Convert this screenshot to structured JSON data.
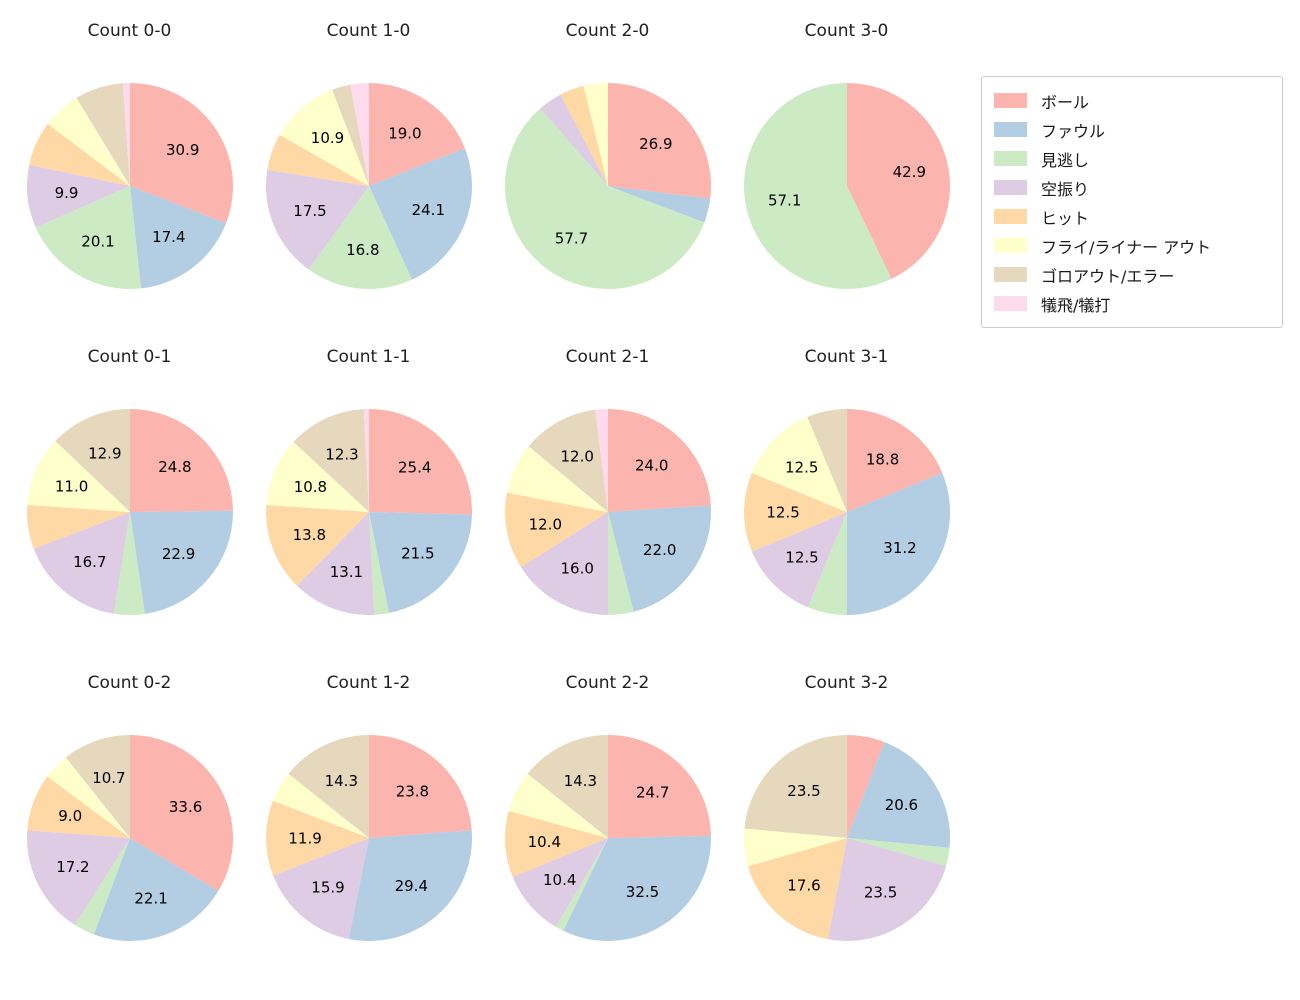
{
  "figure": {
    "background": "#ffffff",
    "text_color": "#1a1a1a"
  },
  "legend": {
    "position": "top-right",
    "border_color": "#cccccc",
    "items": [
      {
        "label": "ボール",
        "color": "#fbb4ae"
      },
      {
        "label": "ファウル",
        "color": "#b3cde3"
      },
      {
        "label": "見逃し",
        "color": "#ccebc5"
      },
      {
        "label": "空振り",
        "color": "#decbe4"
      },
      {
        "label": "ヒット",
        "color": "#fed9a6"
      },
      {
        "label": "フライ/ライナー アウト",
        "color": "#ffffcc"
      },
      {
        "label": "ゴロアウト/エラー",
        "color": "#e5d8bd"
      },
      {
        "label": "犠飛/犠打",
        "color": "#fddaec"
      }
    ]
  },
  "chart_data": [
    {
      "type": "pie",
      "title": "Count 0-0",
      "start_angle_deg": 0,
      "direction": "clockwise",
      "slices": [
        {
          "category": "ボール",
          "value": 30.9,
          "label": "30.9"
        },
        {
          "category": "ファウル",
          "value": 17.4,
          "label": "17.4"
        },
        {
          "category": "見逃し",
          "value": 20.1,
          "label": "20.1"
        },
        {
          "category": "空振り",
          "value": 9.9,
          "label": "9.9"
        },
        {
          "category": "ヒット",
          "value": 7.0,
          "label": ""
        },
        {
          "category": "フライ/ライナー アウト",
          "value": 6.0,
          "label": ""
        },
        {
          "category": "ゴロアウト/エラー",
          "value": 7.6,
          "label": ""
        },
        {
          "category": "犠飛/犠打",
          "value": 1.1,
          "label": ""
        }
      ]
    },
    {
      "type": "pie",
      "title": "Count 1-0",
      "start_angle_deg": 0,
      "direction": "clockwise",
      "slices": [
        {
          "category": "ボール",
          "value": 19.0,
          "label": "19.0"
        },
        {
          "category": "ファウル",
          "value": 24.1,
          "label": "24.1"
        },
        {
          "category": "見逃し",
          "value": 16.8,
          "label": "16.8"
        },
        {
          "category": "空振り",
          "value": 17.5,
          "label": "17.5"
        },
        {
          "category": "ヒット",
          "value": 5.8,
          "label": ""
        },
        {
          "category": "フライ/ライナー アウト",
          "value": 10.9,
          "label": "10.9"
        },
        {
          "category": "ゴロアウト/エラー",
          "value": 2.9,
          "label": ""
        },
        {
          "category": "犠飛/犠打",
          "value": 2.9,
          "label": ""
        }
      ]
    },
    {
      "type": "pie",
      "title": "Count 2-0",
      "start_angle_deg": 0,
      "direction": "clockwise",
      "slices": [
        {
          "category": "ボール",
          "value": 26.9,
          "label": "26.9"
        },
        {
          "category": "ファウル",
          "value": 3.8,
          "label": ""
        },
        {
          "category": "見逃し",
          "value": 57.7,
          "label": "57.7"
        },
        {
          "category": "空振り",
          "value": 3.8,
          "label": ""
        },
        {
          "category": "ヒット",
          "value": 3.8,
          "label": ""
        },
        {
          "category": "フライ/ライナー アウト",
          "value": 3.8,
          "label": ""
        }
      ]
    },
    {
      "type": "pie",
      "title": "Count 3-0",
      "start_angle_deg": 0,
      "direction": "clockwise",
      "slices": [
        {
          "category": "ボール",
          "value": 42.9,
          "label": "42.9"
        },
        {
          "category": "見逃し",
          "value": 57.1,
          "label": "57.1"
        }
      ]
    },
    {
      "type": "pie",
      "title": "Count 0-1",
      "start_angle_deg": 0,
      "direction": "clockwise",
      "slices": [
        {
          "category": "ボール",
          "value": 24.8,
          "label": "24.8"
        },
        {
          "category": "ファウル",
          "value": 22.9,
          "label": "22.9"
        },
        {
          "category": "見逃し",
          "value": 4.8,
          "label": ""
        },
        {
          "category": "空振り",
          "value": 16.7,
          "label": "16.7"
        },
        {
          "category": "ヒット",
          "value": 6.9,
          "label": ""
        },
        {
          "category": "フライ/ライナー アウト",
          "value": 11.0,
          "label": "11.0"
        },
        {
          "category": "ゴロアウト/エラー",
          "value": 12.9,
          "label": "12.9"
        }
      ]
    },
    {
      "type": "pie",
      "title": "Count 1-1",
      "start_angle_deg": 0,
      "direction": "clockwise",
      "slices": [
        {
          "category": "ボール",
          "value": 25.4,
          "label": "25.4"
        },
        {
          "category": "ファウル",
          "value": 21.5,
          "label": "21.5"
        },
        {
          "category": "見逃し",
          "value": 2.3,
          "label": ""
        },
        {
          "category": "空振り",
          "value": 13.1,
          "label": "13.1"
        },
        {
          "category": "ヒット",
          "value": 13.8,
          "label": "13.8"
        },
        {
          "category": "フライ/ライナー アウト",
          "value": 10.8,
          "label": "10.8"
        },
        {
          "category": "ゴロアウト/エラー",
          "value": 12.3,
          "label": "12.3"
        },
        {
          "category": "犠飛/犠打",
          "value": 0.8,
          "label": ""
        }
      ]
    },
    {
      "type": "pie",
      "title": "Count 2-1",
      "start_angle_deg": 0,
      "direction": "clockwise",
      "slices": [
        {
          "category": "ボール",
          "value": 24.0,
          "label": "24.0"
        },
        {
          "category": "ファウル",
          "value": 22.0,
          "label": "22.0"
        },
        {
          "category": "見逃し",
          "value": 4.0,
          "label": ""
        },
        {
          "category": "空振り",
          "value": 16.0,
          "label": "16.0"
        },
        {
          "category": "ヒット",
          "value": 12.0,
          "label": "12.0"
        },
        {
          "category": "フライ/ライナー アウト",
          "value": 8.0,
          "label": ""
        },
        {
          "category": "ゴロアウト/エラー",
          "value": 12.0,
          "label": "12.0"
        },
        {
          "category": "犠飛/犠打",
          "value": 2.0,
          "label": ""
        }
      ]
    },
    {
      "type": "pie",
      "title": "Count 3-1",
      "start_angle_deg": 0,
      "direction": "clockwise",
      "slices": [
        {
          "category": "ボール",
          "value": 18.8,
          "label": "18.8"
        },
        {
          "category": "ファウル",
          "value": 31.2,
          "label": "31.2"
        },
        {
          "category": "見逃し",
          "value": 6.2,
          "label": ""
        },
        {
          "category": "空振り",
          "value": 12.5,
          "label": "12.5"
        },
        {
          "category": "ヒット",
          "value": 12.5,
          "label": "12.5"
        },
        {
          "category": "フライ/ライナー アウト",
          "value": 12.5,
          "label": "12.5"
        },
        {
          "category": "ゴロアウト/エラー",
          "value": 6.3,
          "label": ""
        }
      ]
    },
    {
      "type": "pie",
      "title": "Count 0-2",
      "start_angle_deg": 0,
      "direction": "clockwise",
      "slices": [
        {
          "category": "ボール",
          "value": 33.6,
          "label": "33.6"
        },
        {
          "category": "ファウル",
          "value": 22.1,
          "label": "22.1"
        },
        {
          "category": "見逃し",
          "value": 3.3,
          "label": ""
        },
        {
          "category": "空振り",
          "value": 17.2,
          "label": "17.2"
        },
        {
          "category": "ヒット",
          "value": 9.0,
          "label": "9.0"
        },
        {
          "category": "フライ/ライナー アウト",
          "value": 4.1,
          "label": ""
        },
        {
          "category": "ゴロアウト/エラー",
          "value": 10.7,
          "label": "10.7"
        }
      ]
    },
    {
      "type": "pie",
      "title": "Count 1-2",
      "start_angle_deg": 0,
      "direction": "clockwise",
      "slices": [
        {
          "category": "ボール",
          "value": 23.8,
          "label": "23.8"
        },
        {
          "category": "ファウル",
          "value": 29.4,
          "label": "29.4"
        },
        {
          "category": "空振り",
          "value": 15.9,
          "label": "15.9"
        },
        {
          "category": "ヒット",
          "value": 11.9,
          "label": "11.9"
        },
        {
          "category": "フライ/ライナー アウト",
          "value": 4.8,
          "label": ""
        },
        {
          "category": "ゴロアウト/エラー",
          "value": 14.3,
          "label": "14.3"
        }
      ]
    },
    {
      "type": "pie",
      "title": "Count 2-2",
      "start_angle_deg": 0,
      "direction": "clockwise",
      "slices": [
        {
          "category": "ボール",
          "value": 24.7,
          "label": "24.7"
        },
        {
          "category": "ファウル",
          "value": 32.5,
          "label": "32.5"
        },
        {
          "category": "見逃し",
          "value": 1.3,
          "label": ""
        },
        {
          "category": "空振り",
          "value": 10.4,
          "label": "10.4"
        },
        {
          "category": "ヒット",
          "value": 10.4,
          "label": "10.4"
        },
        {
          "category": "フライ/ライナー アウト",
          "value": 6.5,
          "label": ""
        },
        {
          "category": "ゴロアウト/エラー",
          "value": 14.3,
          "label": "14.3"
        }
      ]
    },
    {
      "type": "pie",
      "title": "Count 3-2",
      "start_angle_deg": 0,
      "direction": "clockwise",
      "slices": [
        {
          "category": "ボール",
          "value": 5.9,
          "label": ""
        },
        {
          "category": "ファウル",
          "value": 20.6,
          "label": "20.6"
        },
        {
          "category": "見逃し",
          "value": 2.9,
          "label": ""
        },
        {
          "category": "空振り",
          "value": 23.5,
          "label": "23.5"
        },
        {
          "category": "ヒット",
          "value": 17.6,
          "label": "17.6"
        },
        {
          "category": "フライ/ライナー アウト",
          "value": 5.9,
          "label": ""
        },
        {
          "category": "ゴロアウト/エラー",
          "value": 23.5,
          "label": "23.5"
        }
      ]
    }
  ]
}
